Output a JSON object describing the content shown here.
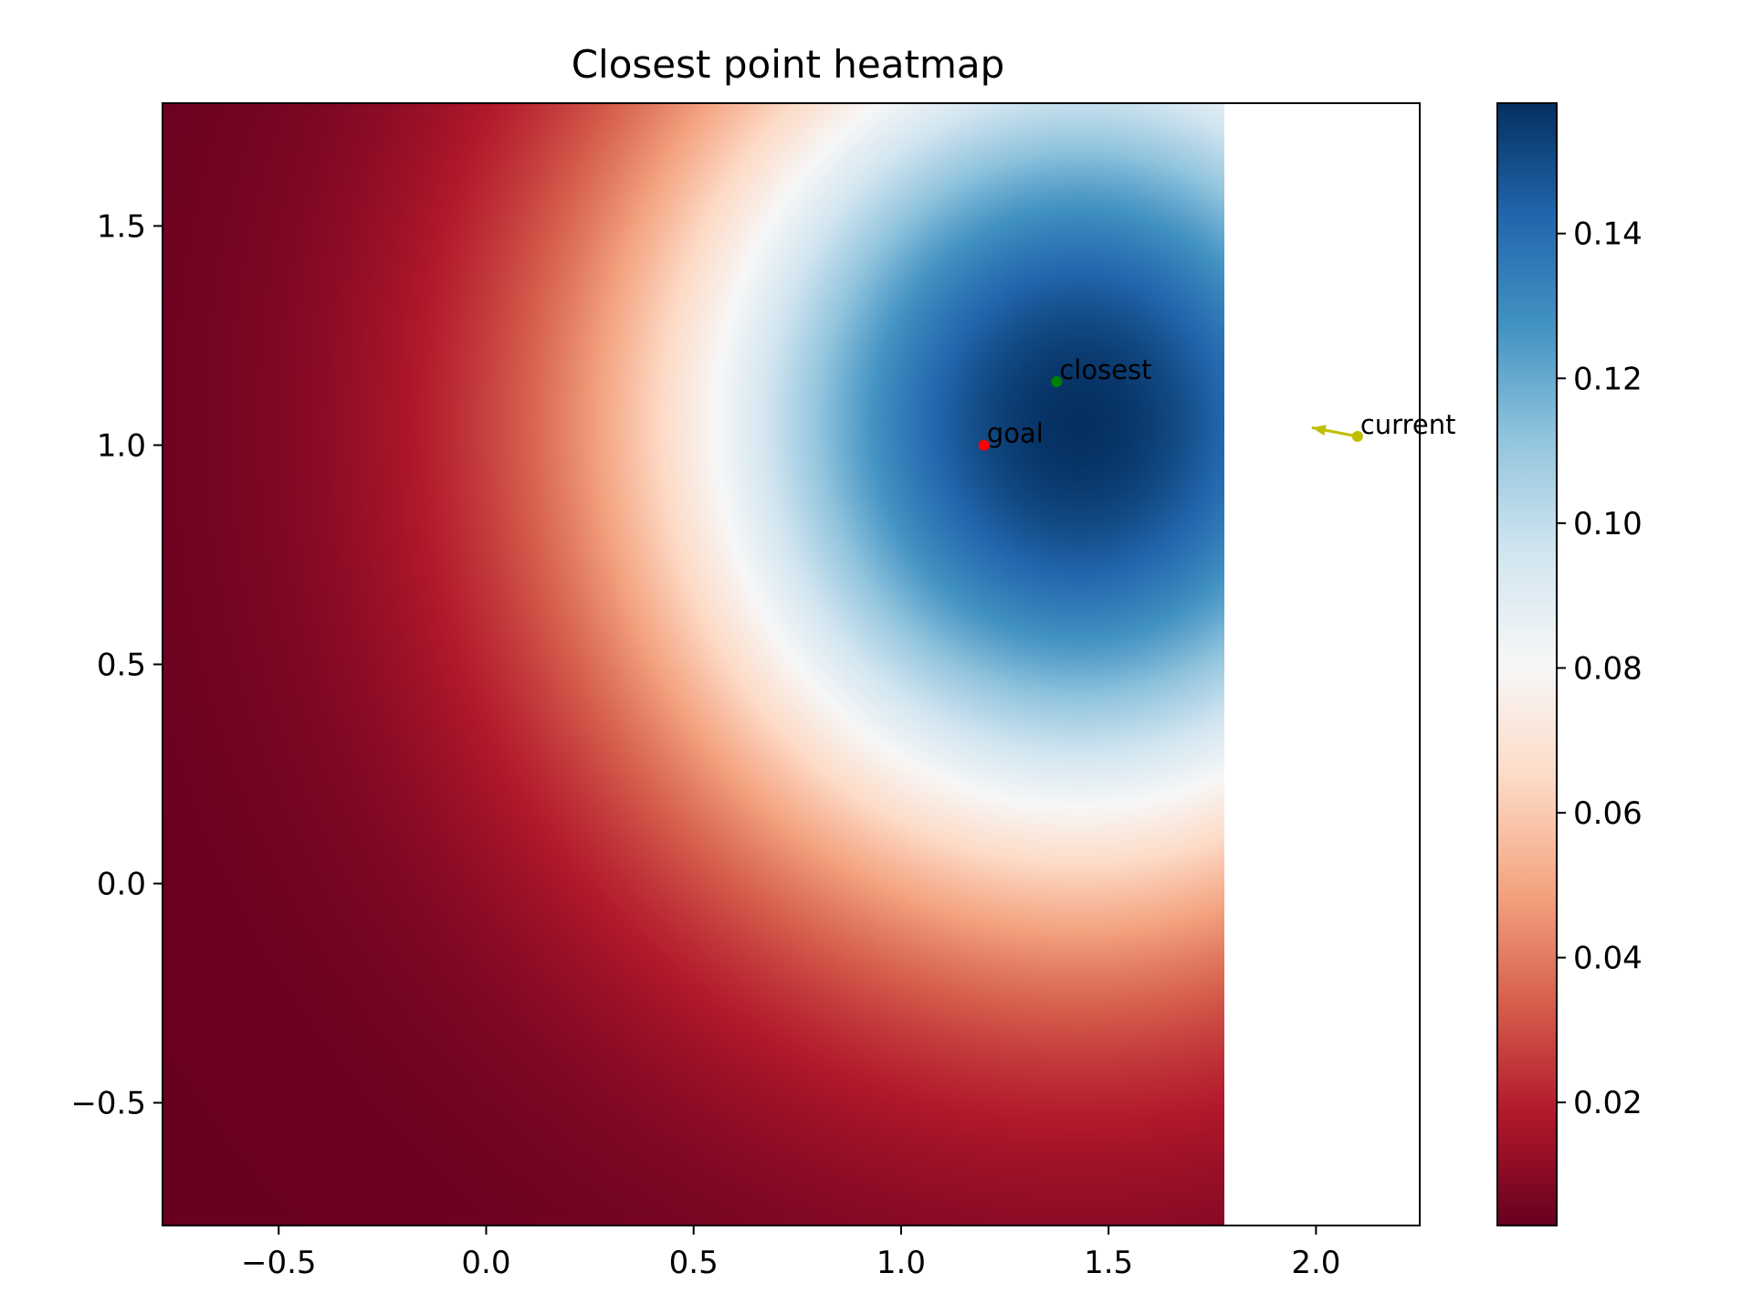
{
  "chart_data": {
    "type": "heatmap",
    "title": "Closest point heatmap",
    "colormap": "RdBu",
    "xlim": [
      -0.78,
      2.25
    ],
    "ylim": [
      -0.78,
      1.78
    ],
    "heatmap_extent": {
      "x": [
        -0.78,
        1.78
      ],
      "y": [
        -0.78,
        1.78
      ]
    },
    "x_ticks": [
      -0.5,
      0.0,
      0.5,
      1.0,
      1.5,
      2.0
    ],
    "x_tick_labels": [
      "−0.5",
      "0.0",
      "0.5",
      "1.0",
      "1.5",
      "2.0"
    ],
    "y_ticks": [
      -0.5,
      0.0,
      0.5,
      1.0,
      1.5
    ],
    "y_tick_labels": [
      "−0.5",
      "0.0",
      "0.5",
      "1.0",
      "1.5"
    ],
    "colorbar": {
      "range": [
        0.003,
        0.158
      ],
      "ticks": [
        0.02,
        0.04,
        0.06,
        0.08,
        0.1,
        0.12,
        0.14
      ],
      "tick_labels": [
        "0.02",
        "0.04",
        "0.06",
        "0.08",
        "0.10",
        "0.12",
        "0.14"
      ]
    },
    "field": {
      "peak": [
        1.43,
        1.05
      ],
      "peak_value": 0.158,
      "radius_to_0_08": 0.88
    },
    "points": [
      {
        "label": "goal",
        "x": 1.2,
        "y": 1.0,
        "color": "#ff0000"
      },
      {
        "label": "closest",
        "x": 1.375,
        "y": 1.145,
        "color": "#008000"
      },
      {
        "label": "current",
        "x": 2.1,
        "y": 1.02,
        "color": "#bfbf00"
      }
    ],
    "arrow": {
      "from": [
        2.1,
        1.02
      ],
      "to": [
        1.99,
        1.04
      ],
      "color": "#bfbf00"
    },
    "grid": false
  },
  "colors": {
    "colormap_stops": [
      "#67001f",
      "#b2182b",
      "#d6604d",
      "#f4a582",
      "#fddbc7",
      "#f7f7f7",
      "#d1e5f0",
      "#92c5de",
      "#4393c3",
      "#2166ac",
      "#053061"
    ]
  }
}
